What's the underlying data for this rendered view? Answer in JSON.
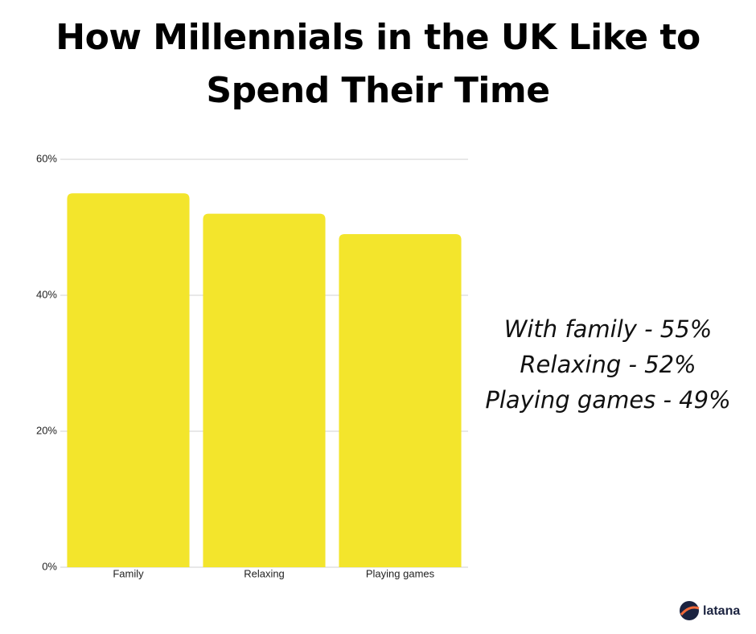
{
  "chart_data": {
    "type": "bar",
    "title": "How Millennials in the UK Like to Spend Their Time",
    "categories": [
      "Family",
      "Relaxing",
      "Playing games"
    ],
    "values": [
      55,
      52,
      49
    ],
    "color": "#f3e52c",
    "ylim": [
      0,
      60
    ],
    "yticks": [
      {
        "value": 0,
        "label": "0%"
      },
      {
        "value": 20,
        "label": "20%"
      },
      {
        "value": 40,
        "label": "40%"
      },
      {
        "value": 60,
        "label": "60%"
      }
    ],
    "grid": true,
    "annotations": [
      "With family - 55%",
      "Relaxing - 52%",
      "Playing games - 49%"
    ],
    "logo": "latana"
  }
}
